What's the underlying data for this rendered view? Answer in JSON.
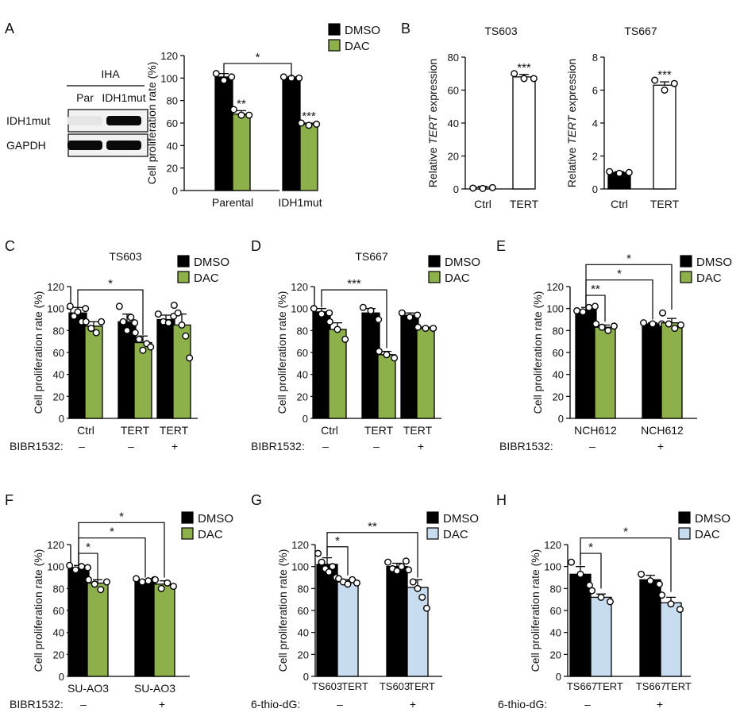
{
  "colors": {
    "black": "#000000",
    "green": "#8db04a",
    "light_blue": "#c8dcf0",
    "white": "#ffffff"
  },
  "western_blot": {
    "panel": "A",
    "group": "IHA",
    "lanes": [
      "Par",
      "IDH1mut"
    ],
    "rows": [
      "IDH1mut",
      "GAPDH"
    ],
    "band_intensity": {
      "IDH1mut": [
        0.05,
        1.0
      ],
      "GAPDH": [
        1.0,
        1.0
      ]
    }
  },
  "chart_data": [
    {
      "panel": "A",
      "type": "bar",
      "title": "",
      "ylabel": "Cell proliferation rate (%)",
      "ylim": [
        0,
        120
      ],
      "yticks": [
        0,
        20,
        40,
        60,
        80,
        100,
        120
      ],
      "legend": [
        {
          "name": "DMSO",
          "color": "#000000"
        },
        {
          "name": "DAC",
          "color": "#8db04a"
        }
      ],
      "bars": [
        {
          "group": 0,
          "series": "DMSO",
          "value": 101,
          "err": 3,
          "points": [
            104,
            98,
            101
          ]
        },
        {
          "group": 0,
          "series": "DAC",
          "value": 68,
          "err": 3,
          "points": [
            72,
            67,
            67
          ],
          "sig": "**"
        },
        {
          "group": 1,
          "series": "DMSO",
          "value": 100,
          "err": 1,
          "points": [
            101,
            100,
            100
          ]
        },
        {
          "group": 1,
          "series": "DAC",
          "value": 59,
          "err": 1,
          "points": [
            60,
            58,
            59
          ],
          "sig": "***"
        }
      ],
      "xlabels": [
        "Parental",
        "IDH1mut"
      ],
      "brackets": [
        {
          "from": 0,
          "to": 2,
          "drop_from": 100,
          "drop_to": 101,
          "y": 113,
          "label": "*"
        }
      ]
    },
    {
      "panel": "B",
      "type": "bar",
      "title": "TS603",
      "ylabel": "Relative TERT expression",
      "ylim": [
        0,
        80
      ],
      "yticks": [
        0,
        20,
        40,
        60,
        80
      ],
      "bars": [
        {
          "group": 0,
          "series": "Ctrl",
          "color": "#ffffff",
          "value": 1,
          "err": 0.5,
          "points": [
            0.5,
            0.3,
            0.8
          ]
        },
        {
          "group": 1,
          "series": "TERT",
          "color": "#ffffff",
          "value": 68,
          "err": 1.5,
          "points": [
            70,
            67,
            67
          ],
          "sig": "***"
        }
      ],
      "xlabels": [
        "Ctrl",
        "TERT"
      ]
    },
    {
      "panel": "B",
      "type": "bar",
      "title": "TS667",
      "ylabel": "Relative TERT expression",
      "ylim": [
        0,
        8
      ],
      "yticks": [
        0,
        2,
        4,
        6,
        8
      ],
      "bars": [
        {
          "group": 0,
          "series": "Ctrl",
          "color": "#000000",
          "value": 1,
          "err": 0.05,
          "points": [
            1.05,
            0.95,
            1.0
          ]
        },
        {
          "group": 1,
          "series": "TERT",
          "color": "#ffffff",
          "value": 6.3,
          "err": 0.2,
          "points": [
            6.6,
            6.0,
            6.4
          ],
          "sig": "***"
        }
      ],
      "xlabels": [
        "Ctrl",
        "TERT"
      ]
    },
    {
      "panel": "C",
      "type": "bar",
      "title": "TS603",
      "ylabel": "Cell proliferation rate (%)",
      "ylim": [
        0,
        120
      ],
      "yticks": [
        0,
        20,
        40,
        60,
        80,
        100,
        120
      ],
      "legend": [
        {
          "name": "DMSO",
          "color": "#000000"
        },
        {
          "name": "DAC",
          "color": "#8db04a"
        }
      ],
      "bars": [
        {
          "group": 0,
          "series": "DMSO",
          "value": 96,
          "err": 5,
          "points": [
            102,
            93,
            97,
            88,
            100
          ]
        },
        {
          "group": 0,
          "series": "DAC",
          "value": 84,
          "err": 4,
          "points": [
            88,
            82,
            78,
            88
          ]
        },
        {
          "group": 1,
          "series": "DMSO",
          "value": 88,
          "err": 7,
          "points": [
            102,
            88,
            80,
            92,
            87
          ]
        },
        {
          "group": 1,
          "series": "DAC",
          "value": 69,
          "err": 6,
          "points": [
            78,
            72,
            62,
            68,
            65
          ]
        },
        {
          "group": 2,
          "series": "DMSO",
          "value": 90,
          "err": 4,
          "points": [
            95,
            88,
            87,
            93
          ]
        },
        {
          "group": 2,
          "series": "DAC",
          "value": 85,
          "err": 10,
          "points": [
            103,
            96,
            85,
            75,
            55
          ]
        }
      ],
      "xlabels": [
        "Ctrl",
        "TERT",
        "TERT"
      ],
      "treatment": {
        "label": "BIBR1532:",
        "values": [
          "–",
          "–",
          "+"
        ]
      },
      "brackets": [
        {
          "from": 0,
          "to": 3,
          "drop_from": 101,
          "drop_to": 76,
          "y": 117,
          "label": "*"
        }
      ]
    },
    {
      "panel": "D",
      "type": "bar",
      "title": "TS667",
      "ylabel": "Cell proliferation rate (%)",
      "ylim": [
        0,
        120
      ],
      "yticks": [
        0,
        20,
        40,
        60,
        80,
        100,
        120
      ],
      "legend": [
        {
          "name": "DMSO",
          "color": "#000000"
        },
        {
          "name": "DAC",
          "color": "#8db04a"
        }
      ],
      "bars": [
        {
          "group": 0,
          "series": "DMSO",
          "value": 97,
          "err": 3,
          "points": [
            100,
            95,
            96
          ]
        },
        {
          "group": 0,
          "series": "DAC",
          "value": 81,
          "err": 6,
          "points": [
            88,
            81,
            72
          ]
        },
        {
          "group": 1,
          "series": "DMSO",
          "value": 96,
          "err": 4,
          "points": [
            101,
            98,
            90
          ]
        },
        {
          "group": 1,
          "series": "DAC",
          "value": 58,
          "err": 3,
          "points": [
            61,
            58,
            55
          ]
        },
        {
          "group": 2,
          "series": "DMSO",
          "value": 94,
          "err": 2,
          "points": [
            96,
            92,
            94
          ]
        },
        {
          "group": 2,
          "series": "DAC",
          "value": 82,
          "err": 1,
          "points": [
            83,
            82,
            82
          ]
        }
      ],
      "xlabels": [
        "Ctrl",
        "TERT",
        "TERT"
      ],
      "treatment": {
        "label": "BIBR1532:",
        "values": [
          "–",
          "–",
          "+"
        ]
      },
      "brackets": [
        {
          "from": 0,
          "to": 3,
          "drop_from": 101,
          "drop_to": 64,
          "y": 117,
          "label": "***"
        }
      ]
    },
    {
      "panel": "E",
      "type": "bar",
      "title": "",
      "ylabel": "Cell proliferation rate (%)",
      "ylim": [
        0,
        120
      ],
      "yticks": [
        0,
        20,
        40,
        60,
        80,
        100,
        120
      ],
      "legend": [
        {
          "name": "DMSO",
          "color": "#000000"
        },
        {
          "name": "DAC",
          "color": "#8db04a"
        }
      ],
      "bars": [
        {
          "group": 0,
          "series": "DMSO",
          "value": 99,
          "err": 2,
          "points": [
            98,
            97,
            101,
            102
          ]
        },
        {
          "group": 0,
          "series": "DAC",
          "value": 83,
          "err": 2,
          "points": [
            86,
            83,
            80,
            84
          ]
        },
        {
          "group": 1,
          "series": "DMSO",
          "value": 86,
          "err": 1,
          "points": [
            87,
            86,
            86
          ]
        },
        {
          "group": 1,
          "series": "DAC",
          "value": 87,
          "err": 4,
          "points": [
            96,
            86,
            82,
            85
          ]
        }
      ],
      "xlabels": [
        "NCH612",
        "NCH612"
      ],
      "treatment": {
        "label": "BIBR1532:",
        "values": [
          "–",
          "+"
        ]
      },
      "brackets": [
        {
          "from": 0,
          "to": 1,
          "drop_from": 101,
          "drop_to": 88,
          "y": 112,
          "label": "**"
        },
        {
          "from": 0,
          "to": 2,
          "drop_from": 101,
          "drop_to": 90,
          "y": 126,
          "label": "*"
        },
        {
          "from": 0,
          "to": 3,
          "drop_from": 101,
          "drop_to": 99,
          "y": 140,
          "label": "*"
        }
      ]
    },
    {
      "panel": "F",
      "type": "bar",
      "title": "",
      "ylabel": "Cell proliferation rate (%)",
      "ylim": [
        0,
        120
      ],
      "yticks": [
        0,
        20,
        40,
        60,
        80,
        100,
        120
      ],
      "legend": [
        {
          "name": "DMSO",
          "color": "#000000"
        },
        {
          "name": "DAC",
          "color": "#8db04a"
        }
      ],
      "bars": [
        {
          "group": 0,
          "series": "DMSO",
          "value": 99,
          "err": 2,
          "points": [
            101,
            97,
            100,
            99
          ]
        },
        {
          "group": 0,
          "series": "DAC",
          "value": 85,
          "err": 3,
          "points": [
            88,
            84,
            79,
            86
          ]
        },
        {
          "group": 1,
          "series": "DMSO",
          "value": 87,
          "err": 1,
          "points": [
            89,
            86,
            87,
            88
          ]
        },
        {
          "group": 1,
          "series": "DAC",
          "value": 84,
          "err": 3,
          "points": [
            88,
            80,
            85,
            82
          ]
        }
      ],
      "xlabels": [
        "SU-AO3",
        "SU-AO3"
      ],
      "treatment": {
        "label": "BIBR1532:",
        "values": [
          "–",
          "+"
        ]
      },
      "brackets": [
        {
          "from": 0,
          "to": 1,
          "drop_from": 101,
          "drop_to": 88,
          "y": 112,
          "label": "*"
        },
        {
          "from": 0,
          "to": 2,
          "drop_from": 101,
          "drop_to": 90,
          "y": 126,
          "label": "*"
        },
        {
          "from": 0,
          "to": 3,
          "drop_from": 101,
          "drop_to": 90,
          "y": 140,
          "label": "*"
        }
      ]
    },
    {
      "panel": "G",
      "type": "bar",
      "title": "",
      "ylabel": "Cell proliferation rate (%)",
      "ylim": [
        0,
        120
      ],
      "yticks": [
        0,
        20,
        40,
        60,
        80,
        100,
        120
      ],
      "legend": [
        {
          "name": "DMSO",
          "color": "#000000"
        },
        {
          "name": "DAC",
          "color": "#c8dcf0"
        }
      ],
      "bars": [
        {
          "group": 0,
          "series": "DMSO",
          "value": 102,
          "err": 6,
          "points": [
            112,
            104,
            98,
            95,
            100,
            90
          ]
        },
        {
          "group": 0,
          "series": "DAC",
          "value": 86,
          "err": 2,
          "points": [
            89,
            86,
            84,
            88,
            85
          ]
        },
        {
          "group": 1,
          "series": "DMSO",
          "value": 100,
          "err": 3,
          "points": [
            104,
            98,
            96,
            100,
            105
          ]
        },
        {
          "group": 1,
          "series": "DAC",
          "value": 81,
          "err": 7,
          "points": [
            97,
            86,
            80,
            72,
            62
          ]
        }
      ],
      "xlabels": [
        "TS603",
        "TERT",
        "TS603",
        "TERT"
      ],
      "treatment": {
        "label": "6-thio-dG:",
        "values": [
          "–",
          "+"
        ]
      },
      "brackets": [
        {
          "from": 0,
          "to": 1,
          "drop_from": 109,
          "drop_to": 92,
          "y": 118,
          "label": "*"
        },
        {
          "from": 0,
          "to": 3,
          "drop_from": 109,
          "drop_to": 90,
          "y": 131,
          "label": "**"
        }
      ]
    },
    {
      "panel": "H",
      "type": "bar",
      "title": "",
      "ylabel": "Cell proliferation rate (%)",
      "ylim": [
        0,
        120
      ],
      "yticks": [
        0,
        20,
        40,
        60,
        80,
        100,
        120
      ],
      "legend": [
        {
          "name": "DMSO",
          "color": "#000000"
        },
        {
          "name": "DAC",
          "color": "#c8dcf0"
        }
      ],
      "bars": [
        {
          "group": 0,
          "series": "DMSO",
          "value": 93,
          "err": 7,
          "points": [
            104,
            93,
            83
          ]
        },
        {
          "group": 0,
          "series": "DAC",
          "value": 72,
          "err": 3,
          "points": [
            78,
            72,
            68
          ]
        },
        {
          "group": 1,
          "series": "DMSO",
          "value": 88,
          "err": 4,
          "points": [
            93,
            87,
            84
          ]
        },
        {
          "group": 1,
          "series": "DAC",
          "value": 67,
          "err": 5,
          "points": [
            74,
            66,
            61
          ]
        }
      ],
      "xlabels": [
        "TS667",
        "TERT",
        "TS667",
        "TERT"
      ],
      "treatment": {
        "label": "6-thio-dG:",
        "values": [
          "–",
          "+"
        ]
      },
      "brackets": [
        {
          "from": 0,
          "to": 1,
          "drop_from": 101,
          "drop_to": 80,
          "y": 112,
          "label": "*"
        },
        {
          "from": 0,
          "to": 3,
          "drop_from": 101,
          "drop_to": 77,
          "y": 126,
          "label": "*"
        }
      ]
    }
  ]
}
